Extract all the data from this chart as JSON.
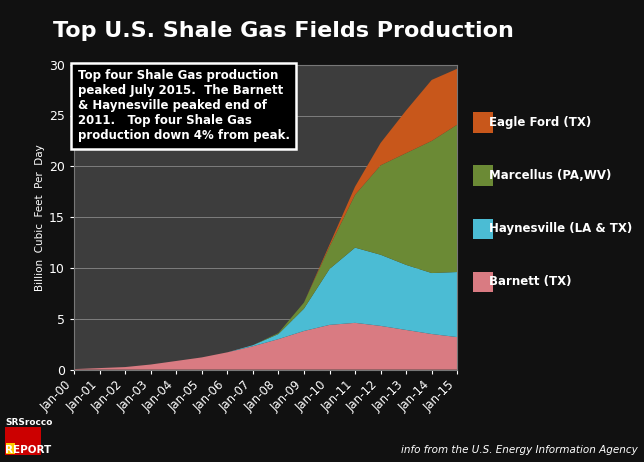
{
  "title": "Top U.S. Shale Gas Fields Production",
  "ylabel": "Billion  Cubic  Feet  Per  Day",
  "background_color": "#111111",
  "plot_bg_color": "#3d3d3d",
  "title_color": "#ffffff",
  "axis_label_color": "#ffffff",
  "tick_color": "#ffffff",
  "ylim": [
    0,
    30
  ],
  "yticks": [
    0,
    5,
    10,
    15,
    20,
    25,
    30
  ],
  "annotation_text": "Top four Shale Gas production\npeaked July 2015.  The Barnett\n& Haynesville peaked end of\n2011.   Top four Shale Gas\nproduction down 4% from peak.",
  "legend": [
    {
      "label": "Eagle Ford (TX)",
      "color": "#c8571b"
    },
    {
      "label": "Marcellus (PA,WV)",
      "color": "#6b8a35"
    },
    {
      "label": "Haynesville (LA & TX)",
      "color": "#4bbcd4"
    },
    {
      "label": "Barnett (TX)",
      "color": "#d97b82"
    }
  ],
  "footer_right": "info from the U.S. Energy Information Agency",
  "dates": [
    "Jan-00",
    "Jan-01",
    "Jan-02",
    "Jan-03",
    "Jan-04",
    "Jan-05",
    "Jan-06",
    "Jan-07",
    "Jan-08",
    "Jan-09",
    "Jan-10",
    "Jan-11",
    "Jan-12",
    "Jan-13",
    "Jan-14",
    "Jan-15"
  ],
  "barnett": [
    0.05,
    0.15,
    0.25,
    0.5,
    0.85,
    1.2,
    1.7,
    2.3,
    3.0,
    3.8,
    4.4,
    4.6,
    4.3,
    3.9,
    3.5,
    3.2
  ],
  "haynesville": [
    0.0,
    0.0,
    0.0,
    0.0,
    0.0,
    0.0,
    0.0,
    0.1,
    0.5,
    2.2,
    5.5,
    7.4,
    7.0,
    6.4,
    6.0,
    6.4
  ],
  "marcellus": [
    0.0,
    0.0,
    0.0,
    0.0,
    0.0,
    0.0,
    0.0,
    0.0,
    0.1,
    0.6,
    2.2,
    5.2,
    8.8,
    11.0,
    13.0,
    14.5
  ],
  "eagle_ford": [
    0.0,
    0.0,
    0.0,
    0.0,
    0.0,
    0.0,
    0.0,
    0.0,
    0.0,
    0.0,
    0.2,
    0.8,
    2.2,
    4.2,
    6.0,
    5.5
  ]
}
